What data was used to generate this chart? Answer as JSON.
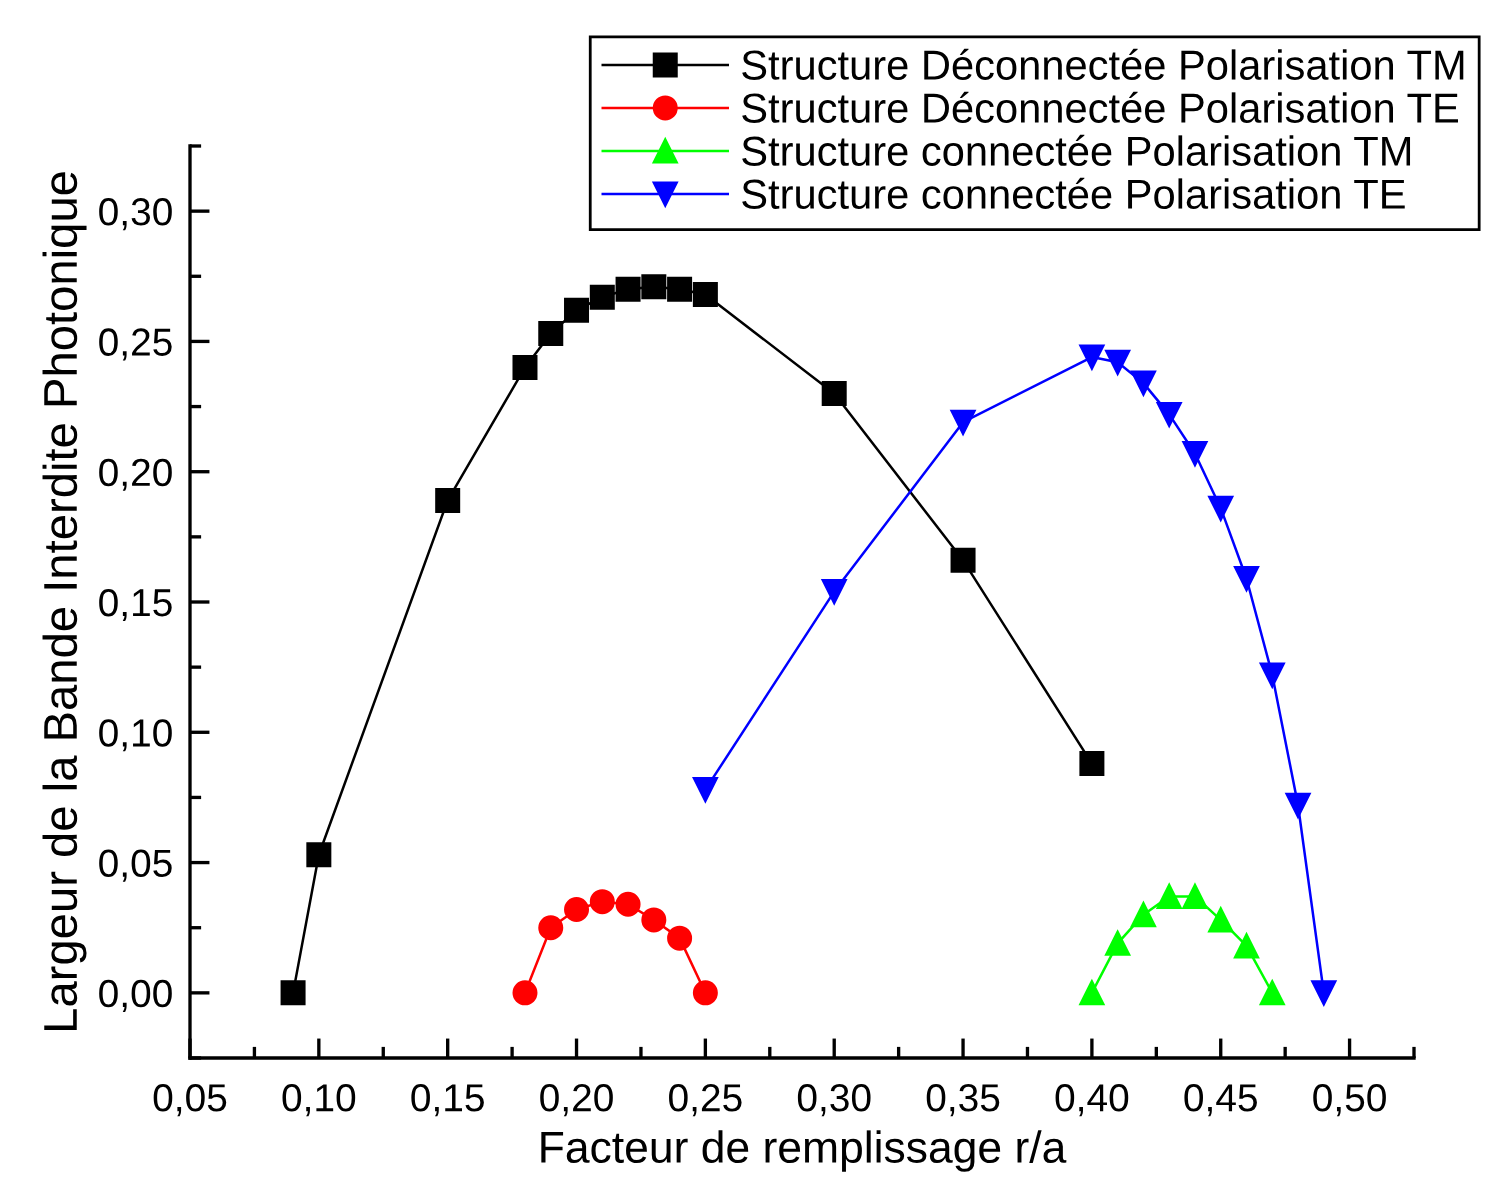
{
  "chart_data": {
    "type": "line",
    "xlabel": "Facteur de remplissage r/a",
    "ylabel": "Largeur de la Bande Interdite Photonique",
    "xlim": [
      0.05,
      0.525
    ],
    "ylim": [
      -0.025,
      0.325
    ],
    "xticks": [
      {
        "value": 0.05,
        "label": "0,05"
      },
      {
        "value": 0.1,
        "label": "0,10"
      },
      {
        "value": 0.15,
        "label": "0,15"
      },
      {
        "value": 0.2,
        "label": "0,20"
      },
      {
        "value": 0.25,
        "label": "0,25"
      },
      {
        "value": 0.3,
        "label": "0,30"
      },
      {
        "value": 0.35,
        "label": "0,35"
      },
      {
        "value": 0.4,
        "label": "0,40"
      },
      {
        "value": 0.45,
        "label": "0,45"
      },
      {
        "value": 0.5,
        "label": "0,50"
      }
    ],
    "yticks": [
      {
        "value": 0.0,
        "label": "0,00"
      },
      {
        "value": 0.05,
        "label": "0,05"
      },
      {
        "value": 0.1,
        "label": "0,10"
      },
      {
        "value": 0.15,
        "label": "0,15"
      },
      {
        "value": 0.2,
        "label": "0,20"
      },
      {
        "value": 0.25,
        "label": "0,25"
      },
      {
        "value": 0.3,
        "label": "0,30"
      }
    ],
    "grid": false,
    "legend": "top right",
    "series": [
      {
        "name": "Structure Déconnectée Polarisation TM",
        "color": "#000000",
        "marker": "square",
        "x": [
          0.09,
          0.1,
          0.15,
          0.18,
          0.19,
          0.2,
          0.21,
          0.22,
          0.23,
          0.24,
          0.25,
          0.3,
          0.35,
          0.4
        ],
        "values": [
          0,
          0.053,
          0.189,
          0.24,
          0.253,
          0.262,
          0.267,
          0.27,
          0.271,
          0.27,
          0.268,
          0.23,
          0.166,
          0.088
        ]
      },
      {
        "name": "Structure Déconnectée Polarisation TE",
        "color": "#ff0000",
        "marker": "circle",
        "x": [
          0.18,
          0.19,
          0.2,
          0.21,
          0.22,
          0.23,
          0.24,
          0.25
        ],
        "values": [
          0,
          0.025,
          0.032,
          0.035,
          0.034,
          0.028,
          0.021,
          0
        ]
      },
      {
        "name": "Structure connectée Polarisation TM",
        "color": "#00ff00",
        "marker": "triangle",
        "x": [
          0.4,
          0.41,
          0.42,
          0.43,
          0.44,
          0.45,
          0.46,
          0.47
        ],
        "values": [
          0,
          0.019,
          0.03,
          0.037,
          0.037,
          0.028,
          0.018,
          0
        ]
      },
      {
        "name": "Structure connectée Polarisation TE",
        "color": "#0000ff",
        "marker": "triangle_down",
        "x": [
          0.25,
          0.3,
          0.35,
          0.4,
          0.41,
          0.42,
          0.43,
          0.44,
          0.45,
          0.46,
          0.47,
          0.48,
          0.49
        ],
        "values": [
          0.078,
          0.154,
          0.219,
          0.244,
          0.242,
          0.234,
          0.222,
          0.207,
          0.186,
          0.159,
          0.122,
          0.072,
          0
        ]
      }
    ]
  }
}
